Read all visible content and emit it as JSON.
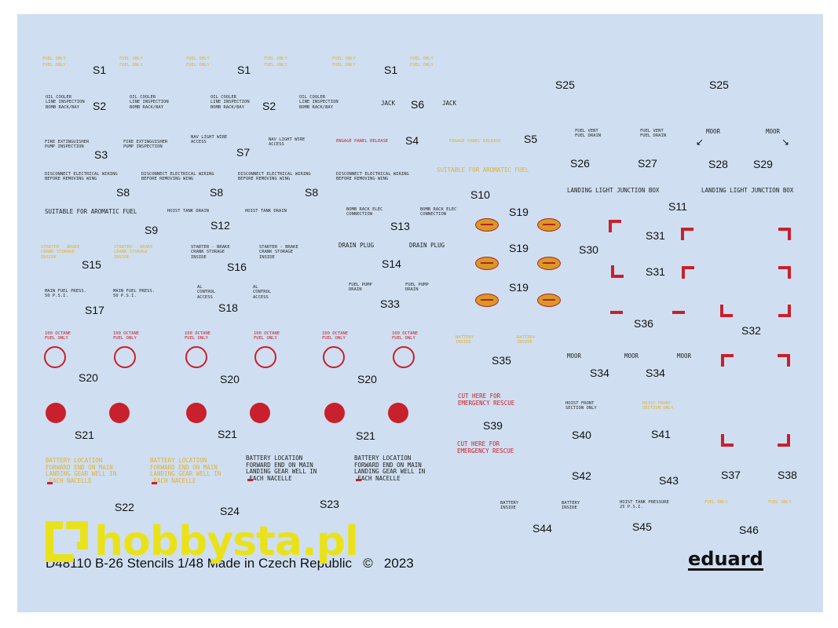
{
  "sheet": {
    "labels": {
      "s1": "S1",
      "s2": "S2",
      "s3": "S3",
      "s4": "S4",
      "s5": "S5",
      "s6": "S6",
      "s7": "S7",
      "s8": "S8",
      "s9": "S9",
      "s10": "S10",
      "s11": "S11",
      "s12": "S12",
      "s13": "S13",
      "s14": "S14",
      "s15": "S15",
      "s16": "S16",
      "s17": "S17",
      "s18": "S18",
      "s19": "S19",
      "s20": "S20",
      "s21": "S21",
      "s22": "S22",
      "s23": "S23",
      "s24": "S24",
      "s25": "S25",
      "s26": "S26",
      "s27": "S27",
      "s28": "S28",
      "s29": "S29",
      "s30": "S30",
      "s31": "S31",
      "s32": "S32",
      "s33": "S33",
      "s34": "S34",
      "s35": "S35",
      "s36": "S36",
      "s37": "S37",
      "s38": "S38",
      "s39": "S39",
      "s40": "S40",
      "s41": "S41",
      "s42": "S42",
      "s43": "S43",
      "s44": "S44",
      "s45": "S45",
      "s46": "S46"
    },
    "stencils": {
      "oil_cooler": "OIL COOLER\nLINE INSPECTION\nBOMB RACK/BAY",
      "jack": "JACK",
      "fire_ext": "FIRE EXTINGUISHER\nPUMP INSPECTION",
      "nav_light": "NAV LIGHT WIRE\nACCESS",
      "engage_panel": "ENGAGE PANEL RELEASE",
      "disconnect": "DISCONNECT ELECTRICAL WIRING\nBEFORE REMOVING WING",
      "aromatic": "SUITABLE FOR AROMATIC FUEL",
      "hoist_drain": "HOIST TANK DRAIN",
      "bomb_rack": "BOMB RACK ELEC\nCONNECTION",
      "drain_plug": "DRAIN PLUG",
      "starter": "STARTER - BRAKE\nCRANK STORAGE\nINSIDE",
      "fuel_pump": "FUEL PUMP\nDRAIN",
      "main_fuel": "MAIN FUEL PRESS.\n50 P.S.I.",
      "al_control": "AL\nCONTROL\nACCESS",
      "octane": "100 OCTANE\nFUEL ONLY",
      "fuel_vent": "FUEL VENT\nFUEL DRAIN",
      "moor": "MOOR",
      "landing_light": "LANDING LIGHT JUNCTION BOX",
      "battery_inside": "BATTERY\nINSIDE",
      "cut_here": "CUT HERE FOR\nEMERGENCY RESCUE",
      "hoist_front": "HOIST FRONT\nSECTION ONLY",
      "battery_location": "BATTERY LOCATION\nFORWARD END ON MAIN\nLANDING GEAR WELL IN\n EACH NACELLE",
      "hoist_psi": "HOIST TANK PRESSURE\n25 P.S.I.",
      "fuel_only": "FUEL ONLY"
    },
    "footer": {
      "code": "D48110",
      "title": "B-26 Stencils",
      "scale": "1/48",
      "made_in": "Made in Czech Republic",
      "copyright": "©",
      "year": "2023"
    },
    "brand": "eduard",
    "watermark": "hobbysta.pl",
    "colors": {
      "background": "#cfdff1",
      "insignia_red": "#c8202c",
      "stencil_yellow": "#e2b030",
      "stencil_black": "#111111",
      "watermark": "#e9e21a"
    }
  }
}
